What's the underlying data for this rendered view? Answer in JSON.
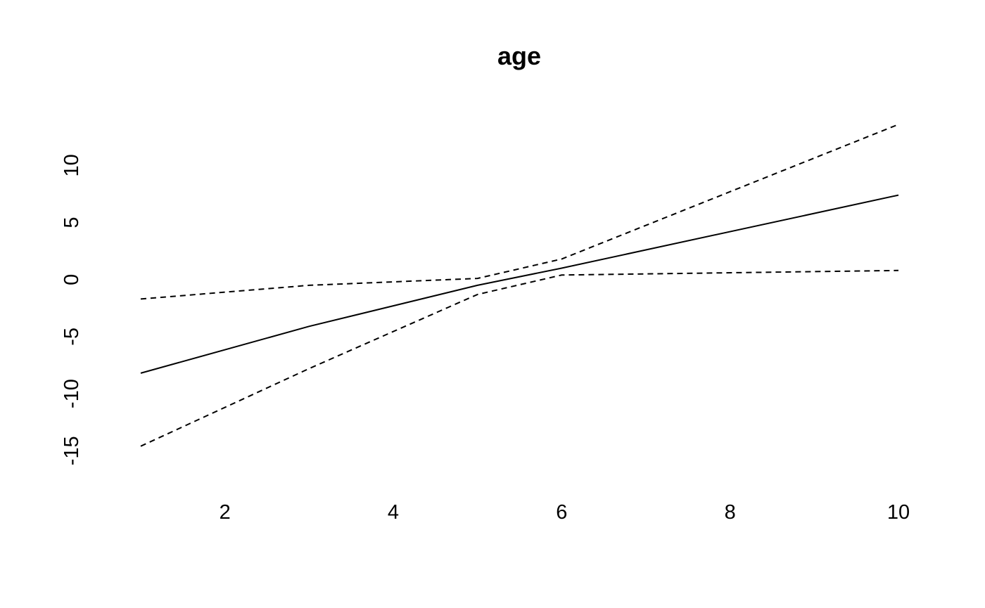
{
  "chart_data": {
    "type": "line",
    "title": "age",
    "xlabel": "",
    "ylabel": "",
    "xlim": [
      1,
      10
    ],
    "ylim": [
      -15.6,
      13.6
    ],
    "x_ticks": [
      2,
      4,
      6,
      8,
      10
    ],
    "y_ticks": [
      -15,
      -10,
      -5,
      0,
      5,
      10
    ],
    "x_tick_labels": [
      "2",
      "4",
      "6",
      "8",
      "10"
    ],
    "y_tick_labels": [
      "-15",
      "-10",
      "-5",
      "0",
      "5",
      "10"
    ],
    "grid": false,
    "legend": false,
    "series": [
      {
        "style": "solid",
        "color": "#000000",
        "x": [
          1,
          3,
          5,
          6,
          10
        ],
        "y": [
          -8.2,
          -4.1,
          -0.5,
          1.0,
          7.4
        ]
      },
      {
        "style": "dashed",
        "color": "#000000",
        "x": [
          1,
          3,
          5,
          6,
          10
        ],
        "y": [
          -1.7,
          -0.5,
          0.1,
          1.8,
          13.6
        ]
      },
      {
        "style": "dashed",
        "color": "#000000",
        "x": [
          1,
          3,
          5,
          6,
          10
        ],
        "y": [
          -14.6,
          -7.8,
          -1.3,
          0.4,
          0.8
        ]
      }
    ]
  }
}
